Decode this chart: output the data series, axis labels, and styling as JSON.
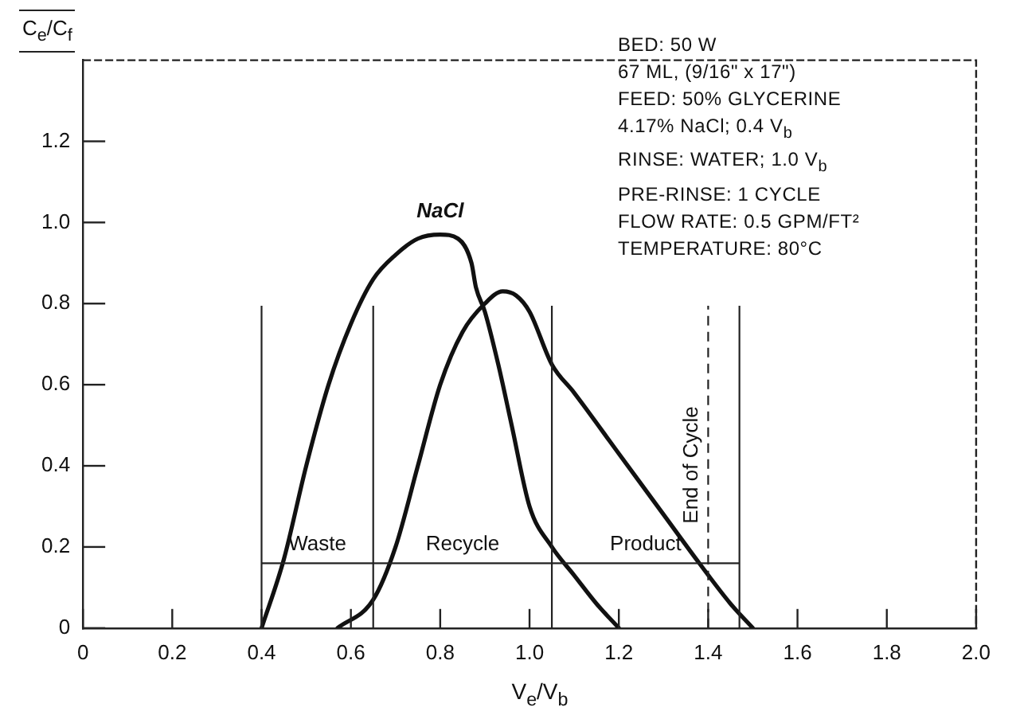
{
  "chart_data": {
    "type": "line",
    "xlabel": "V$_{e}$/V$_{b}$",
    "ylabel": "C$_{e}$/C$_{f}$",
    "xlim": [
      0,
      2
    ],
    "ylim": [
      0,
      1.4
    ],
    "xticks": [
      0,
      0.2,
      0.4,
      0.6,
      0.8,
      {
        "value": 1,
        "label": "1.0"
      },
      1.2,
      1.4,
      1.6,
      1.8,
      {
        "value": 2,
        "label": "2.0"
      }
    ],
    "yticks": [
      0,
      0.2,
      0.4,
      0.6,
      0.8,
      {
        "value": 1,
        "label": "1.0"
      },
      1.2
    ],
    "grid": false,
    "legend": false,
    "marker": "none",
    "line_style": "solid",
    "series": [
      {
        "name": "NaCl",
        "color": "#111111",
        "x": [
          0.4,
          0.45,
          0.5,
          0.55,
          0.6,
          0.65,
          0.7,
          0.75,
          0.8,
          0.84,
          0.87,
          0.88,
          0.9,
          0.93,
          0.96,
          1.0,
          1.05,
          1.1,
          1.15,
          1.2
        ],
        "values": [
          0,
          0.17,
          0.4,
          0.6,
          0.75,
          0.86,
          0.92,
          0.96,
          0.97,
          0.96,
          0.9,
          0.84,
          0.78,
          0.65,
          0.5,
          0.3,
          0.2,
          0.13,
          0.06,
          0
        ]
      },
      {
        "color": "#111111",
        "x": [
          0.57,
          0.65,
          0.7,
          0.75,
          0.8,
          0.85,
          0.9,
          0.94,
          0.97,
          1.0,
          1.05,
          1.1,
          1.2,
          1.3,
          1.38,
          1.45,
          1.5
        ],
        "values": [
          0,
          0.07,
          0.2,
          0.4,
          0.6,
          0.73,
          0.8,
          0.83,
          0.82,
          0.78,
          0.65,
          0.58,
          0.43,
          0.28,
          0.16,
          0.06,
          0
        ]
      }
    ],
    "ref_lines": [
      {
        "axis": "x",
        "value": 0.4
      },
      {
        "axis": "x",
        "value": 0.65
      },
      {
        "axis": "x",
        "value": 1.05
      },
      {
        "axis": "x",
        "value": 1.4,
        "label": "End of Cycle",
        "line_style": "dashed"
      },
      {
        "axis": "x",
        "value": 1.47
      },
      {
        "axis": "y",
        "value": 0.16
      }
    ],
    "annotations": [
      "Waste",
      "Recycle",
      "Product",
      "BED: 50 W",
      "67 ML, (9/16\" x 17\")",
      "FEED: 50% GLYCERINE",
      "4.17% NaCl; 0.4 V$_{b}$",
      "RINSE: WATER; 1.0 V$_{b}$",
      "PRE-RINSE: 1 CYCLE",
      "FLOW RATE: 0.5 GPM/FT²",
      "TEMPERATURE: 80°C"
    ]
  }
}
